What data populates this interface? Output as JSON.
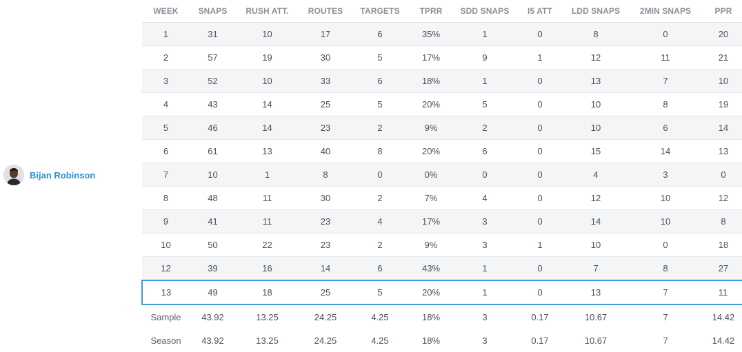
{
  "player": {
    "name": "Bijan Robinson"
  },
  "table": {
    "columns": [
      "WEEK",
      "SNAPS",
      "RUSH ATT.",
      "ROUTES",
      "TARGETS",
      "TPRR",
      "SDD SNAPS",
      "I5 ATT",
      "LDD SNAPS",
      "2MIN SNAPS",
      "PPR"
    ],
    "rows": [
      [
        "1",
        "31",
        "10",
        "17",
        "6",
        "35%",
        "1",
        "0",
        "8",
        "0",
        "20"
      ],
      [
        "2",
        "57",
        "19",
        "30",
        "5",
        "17%",
        "9",
        "1",
        "12",
        "11",
        "21"
      ],
      [
        "3",
        "52",
        "10",
        "33",
        "6",
        "18%",
        "1",
        "0",
        "13",
        "7",
        "10"
      ],
      [
        "4",
        "43",
        "14",
        "25",
        "5",
        "20%",
        "5",
        "0",
        "10",
        "8",
        "19"
      ],
      [
        "5",
        "46",
        "14",
        "23",
        "2",
        "9%",
        "2",
        "0",
        "10",
        "6",
        "14"
      ],
      [
        "6",
        "61",
        "13",
        "40",
        "8",
        "20%",
        "6",
        "0",
        "15",
        "14",
        "13"
      ],
      [
        "7",
        "10",
        "1",
        "8",
        "0",
        "0%",
        "0",
        "0",
        "4",
        "3",
        "0"
      ],
      [
        "8",
        "48",
        "11",
        "30",
        "2",
        "7%",
        "4",
        "0",
        "12",
        "10",
        "12"
      ],
      [
        "9",
        "41",
        "11",
        "23",
        "4",
        "17%",
        "3",
        "0",
        "14",
        "10",
        "8"
      ],
      [
        "10",
        "50",
        "22",
        "23",
        "2",
        "9%",
        "3",
        "1",
        "10",
        "0",
        "18"
      ],
      [
        "12",
        "39",
        "16",
        "14",
        "6",
        "43%",
        "1",
        "0",
        "7",
        "8",
        "27"
      ],
      [
        "13",
        "49",
        "18",
        "25",
        "5",
        "20%",
        "1",
        "0",
        "13",
        "7",
        "11"
      ]
    ],
    "selected_row_index": 11,
    "summary": [
      [
        "Sample",
        "43.92",
        "13.25",
        "24.25",
        "4.25",
        "18%",
        "3",
        "0.17",
        "10.67",
        "7",
        "14.42"
      ],
      [
        "Season",
        "43.92",
        "13.25",
        "24.25",
        "4.25",
        "18%",
        "3",
        "0.17",
        "10.67",
        "7",
        "14.42"
      ]
    ]
  },
  "colors": {
    "accent": "#2e8fd6",
    "selected_border": "#3d9bd8",
    "stripe": "#f4f5f6",
    "header_text": "#8a9099"
  }
}
